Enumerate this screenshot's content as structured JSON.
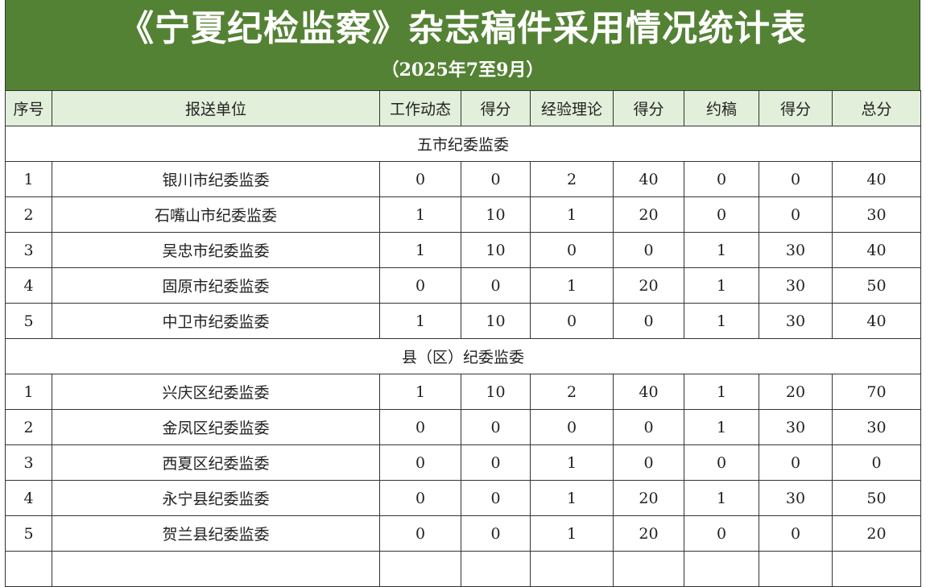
{
  "title": "《宁夏纪检监察》杂志稿件采用情况统计表",
  "subtitle": "（2025年7至9月）",
  "colors": {
    "title_band": "#548235",
    "header_bg": "#E2EFDA"
  },
  "columns": [
    "序号",
    "报送单位",
    "工作动态",
    "得分",
    "经验理论",
    "得分",
    "约稿",
    "得分",
    "总分"
  ],
  "sections": [
    {
      "label": "五市纪委监委",
      "rows": [
        [
          "1",
          "银川市纪委监委",
          "0",
          "0",
          "2",
          "40",
          "0",
          "0",
          "40"
        ],
        [
          "2",
          "石嘴山市纪委监委",
          "1",
          "10",
          "1",
          "20",
          "0",
          "0",
          "30"
        ],
        [
          "3",
          "吴忠市纪委监委",
          "1",
          "10",
          "0",
          "0",
          "1",
          "30",
          "40"
        ],
        [
          "4",
          "固原市纪委监委",
          "0",
          "0",
          "1",
          "20",
          "1",
          "30",
          "50"
        ],
        [
          "5",
          "中卫市纪委监委",
          "1",
          "10",
          "0",
          "0",
          "1",
          "30",
          "40"
        ]
      ]
    },
    {
      "label": "县（区）纪委监委",
      "rows": [
        [
          "1",
          "兴庆区纪委监委",
          "1",
          "10",
          "2",
          "40",
          "1",
          "20",
          "70"
        ],
        [
          "2",
          "金凤区纪委监委",
          "0",
          "0",
          "0",
          "0",
          "1",
          "30",
          "30"
        ],
        [
          "3",
          "西夏区纪委监委",
          "0",
          "0",
          "1",
          "0",
          "0",
          "0",
          "0"
        ],
        [
          "4",
          "永宁县纪委监委",
          "0",
          "0",
          "1",
          "20",
          "1",
          "30",
          "50"
        ],
        [
          "5",
          "贺兰县纪委监委",
          "0",
          "0",
          "1",
          "20",
          "0",
          "0",
          "20"
        ]
      ]
    }
  ]
}
